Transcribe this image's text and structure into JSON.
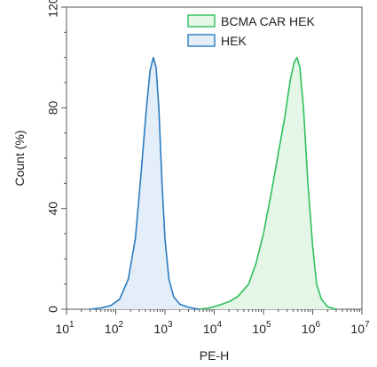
{
  "chart_data": {
    "type": "area",
    "xlabel": "PE-H",
    "ylabel": "Count (%)",
    "x_scale": "log",
    "xlim": [
      10,
      10000000
    ],
    "ylim": [
      0,
      120
    ],
    "x_ticks": [
      {
        "value": 10,
        "base": "10",
        "exp": "1"
      },
      {
        "value": 100,
        "base": "10",
        "exp": "2"
      },
      {
        "value": 1000,
        "base": "10",
        "exp": "3"
      },
      {
        "value": 10000,
        "base": "10",
        "exp": "4"
      },
      {
        "value": 100000,
        "base": "10",
        "exp": "5"
      },
      {
        "value": 1000000,
        "base": "10",
        "exp": "6"
      },
      {
        "value": 10000000,
        "base": "10",
        "exp": "7"
      }
    ],
    "y_ticks": [
      {
        "value": 0,
        "label": "0"
      },
      {
        "value": 40,
        "label": "40"
      },
      {
        "value": 80,
        "label": "80"
      },
      {
        "value": 120,
        "label": "120"
      }
    ],
    "grid": false,
    "legend_position": "top-right",
    "series": [
      {
        "name": "BCMA CAR HEK",
        "stroke": "#2fbf5a",
        "fill": "#e3f6e8",
        "points": [
          [
            5000,
            0
          ],
          [
            8000,
            0.5
          ],
          [
            12000,
            1.5
          ],
          [
            20000,
            3
          ],
          [
            30000,
            5
          ],
          [
            50000,
            10
          ],
          [
            70000,
            18
          ],
          [
            100000,
            30
          ],
          [
            150000,
            48
          ],
          [
            200000,
            62
          ],
          [
            270000,
            76
          ],
          [
            350000,
            91
          ],
          [
            420000,
            98
          ],
          [
            480000,
            100
          ],
          [
            550000,
            96
          ],
          [
            650000,
            80
          ],
          [
            800000,
            50
          ],
          [
            1000000,
            25
          ],
          [
            1200000,
            10
          ],
          [
            1500000,
            4
          ],
          [
            2000000,
            1
          ],
          [
            3000000,
            0
          ]
        ]
      },
      {
        "name": "HEK",
        "stroke": "#2b7bbf",
        "fill": "#e4eef8",
        "points": [
          [
            30,
            0
          ],
          [
            50,
            0.5
          ],
          [
            80,
            1.5
          ],
          [
            120,
            4
          ],
          [
            180,
            12
          ],
          [
            250,
            28
          ],
          [
            330,
            55
          ],
          [
            420,
            80
          ],
          [
            500,
            95
          ],
          [
            580,
            100
          ],
          [
            660,
            96
          ],
          [
            750,
            80
          ],
          [
            870,
            50
          ],
          [
            1000,
            28
          ],
          [
            1200,
            12
          ],
          [
            1500,
            5
          ],
          [
            2000,
            2
          ],
          [
            3000,
            0.8
          ],
          [
            5000,
            0
          ]
        ]
      }
    ]
  }
}
